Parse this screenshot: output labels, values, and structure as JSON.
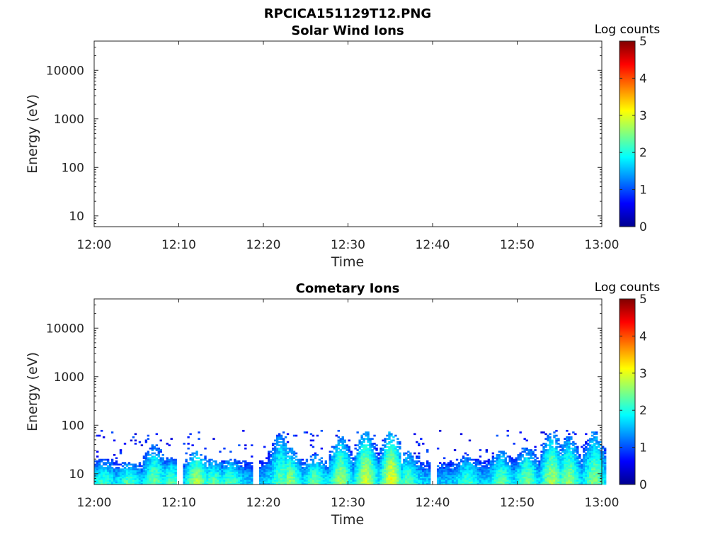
{
  "figure_title": "RPCICA151129T12.PNG",
  "colors": {
    "jet": [
      "#00008f",
      "#0000ff",
      "#0080ff",
      "#00ffff",
      "#80ff80",
      "#ffff00",
      "#ff8000",
      "#ff0000",
      "#800000"
    ]
  },
  "chart_data": [
    {
      "type": "heatmap",
      "title": "Solar Wind Ions",
      "xlabel": "Time",
      "ylabel": "Energy (eV)",
      "x_ticks": [
        "12:00",
        "12:10",
        "12:20",
        "12:30",
        "12:40",
        "12:50",
        "13:00"
      ],
      "xlim": [
        "12:00",
        "13:00"
      ],
      "y_scale": "log",
      "y_ticks": [
        "10",
        "100",
        "1000",
        "10000"
      ],
      "ylim": [
        6,
        40000
      ],
      "colorbar": {
        "label": "Log counts",
        "ticks": [
          "0",
          "1",
          "2",
          "3",
          "4",
          "5"
        ],
        "range": [
          0,
          5
        ],
        "colormap": "jet"
      },
      "data": []
    },
    {
      "type": "heatmap",
      "title": "Cometary Ions",
      "xlabel": "Time",
      "ylabel": "Energy (eV)",
      "x_ticks": [
        "12:00",
        "12:10",
        "12:20",
        "12:30",
        "12:40",
        "12:50",
        "13:00"
      ],
      "xlim": [
        "12:00",
        "13:00"
      ],
      "y_scale": "log",
      "y_ticks": [
        "10",
        "100",
        "1000",
        "10000"
      ],
      "ylim": [
        6,
        40000
      ],
      "colorbar": {
        "label": "Log counts",
        "ticks": [
          "0",
          "1",
          "2",
          "3",
          "4",
          "5"
        ],
        "range": [
          0,
          5
        ],
        "colormap": "jet"
      },
      "data": {
        "energy_range_eV": [
          6,
          80
        ],
        "peak_log_counts": 3.1,
        "bursts": [
          {
            "time": "12:01",
            "top_eV": 20,
            "peak": 2.2
          },
          {
            "time": "12:04",
            "top_eV": 18,
            "peak": 2.3
          },
          {
            "time": "12:07",
            "top_eV": 40,
            "peak": 2.4
          },
          {
            "time": "12:09",
            "top_eV": 22,
            "peak": 2.3
          },
          {
            "time": "12:12",
            "top_eV": 30,
            "peak": 2.8
          },
          {
            "time": "12:14",
            "top_eV": 20,
            "peak": 2.4
          },
          {
            "time": "12:16",
            "top_eV": 20,
            "peak": 2.3
          },
          {
            "time": "12:22",
            "top_eV": 75,
            "peak": 2.3
          },
          {
            "time": "12:23",
            "top_eV": 35,
            "peak": 2.6
          },
          {
            "time": "12:26",
            "top_eV": 25,
            "peak": 2.4
          },
          {
            "time": "12:29",
            "top_eV": 60,
            "peak": 2.7
          },
          {
            "time": "12:32",
            "top_eV": 75,
            "peak": 2.9
          },
          {
            "time": "12:35",
            "top_eV": 75,
            "peak": 3.1
          },
          {
            "time": "12:37",
            "top_eV": 30,
            "peak": 2.3
          },
          {
            "time": "12:44",
            "top_eV": 25,
            "peak": 2.2
          },
          {
            "time": "12:48",
            "top_eV": 30,
            "peak": 2.4
          },
          {
            "time": "12:51",
            "top_eV": 35,
            "peak": 2.5
          },
          {
            "time": "12:54",
            "top_eV": 75,
            "peak": 2.7
          },
          {
            "time": "12:56",
            "top_eV": 60,
            "peak": 2.6
          },
          {
            "time": "12:59",
            "top_eV": 75,
            "peak": 2.5
          }
        ],
        "gaps": [
          "12:10",
          "12:19",
          "12:40"
        ]
      }
    }
  ]
}
